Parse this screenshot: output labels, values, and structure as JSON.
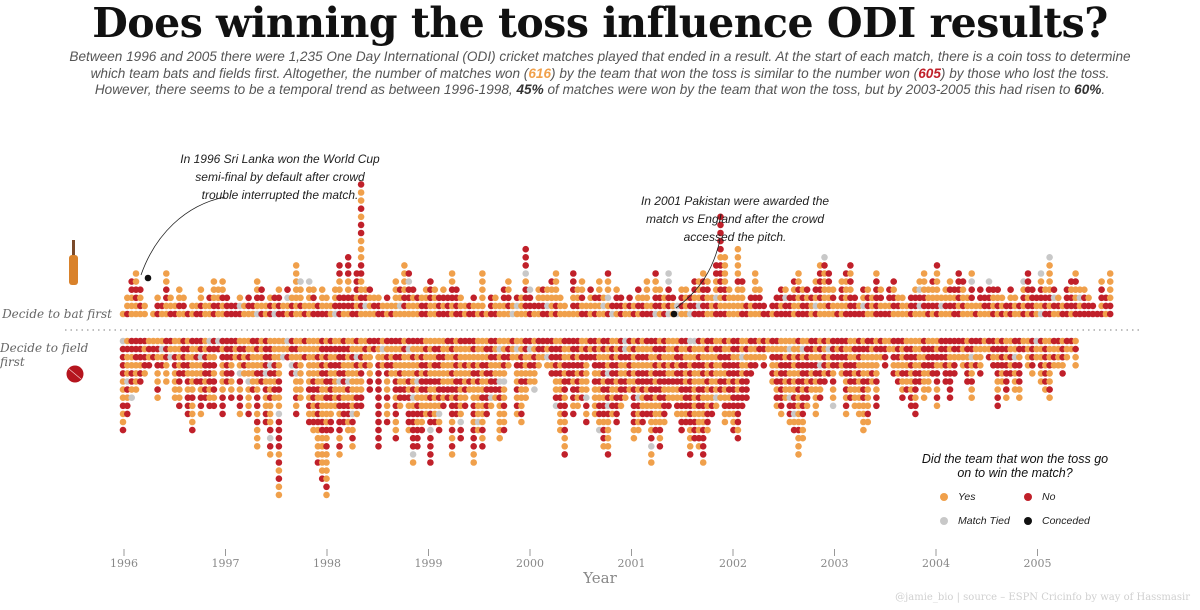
{
  "title": "Does winning the toss influence ODI results?",
  "subtitle": {
    "line1": "Between 1996 and 2005 there were 1,235 One Day International (ODI) cricket matches played that ended in a result. At the start of each match, there is a coin toss to determine",
    "line2a": "which team bats and fields first. Altogether, the number of matches won (",
    "line2_yes": "616",
    "line2b": ") by the team that won the toss is similar to the number won (",
    "line2_no": "605",
    "line2c": ") by those who lost the toss.",
    "line3a": "However, there seems to be a temporal trend as between 1996-1998, ",
    "line3_pct1": "45%",
    "line3b": " of matches were won by the team that won the toss, but by 2003-2005 this had risen to ",
    "line3_pct2": "60%",
    "line3c": "."
  },
  "annotations": {
    "a1996": "In 1996 Sri Lanka won the World Cup semi-final by default after crowd trouble interrupted the match.",
    "a2001": "In 2001 Pakistan were awarded the match vs England after the crowd accessed the pitch."
  },
  "row_labels": {
    "bat": "Decide to bat first",
    "field": "Decide to field first"
  },
  "icons": {
    "bat": "cricket-bat-icon",
    "ball": "cricket-ball-icon"
  },
  "legend": {
    "title": "Did the team that won the toss go on to win the match?",
    "yes": "Yes",
    "no": "No",
    "tied": "Match Tied",
    "conceded": "Conceded"
  },
  "source": "@jamie_bio | source – ESPN Cricinfo by way of Hassmasir",
  "colors": {
    "yes": "#f0a04b",
    "no": "#c0202a",
    "tied": "#c8c8c8",
    "conceded": "#111111"
  },
  "chart_data": {
    "type": "scatter",
    "xlabel": "Year",
    "xticks": [
      "1996",
      "1997",
      "1998",
      "1999",
      "2000",
      "2001",
      "2002",
      "2003",
      "2004",
      "2005"
    ],
    "xlim": [
      1996,
      2006
    ],
    "unit": "one dot = one ODI match",
    "totals": {
      "matches": 1235,
      "toss_winner_won": 616,
      "toss_loser_won": 605
    },
    "period_share": {
      "1996-1998": "45%",
      "2003-2005": "60%"
    },
    "series": [
      {
        "name": "Decide to bat first",
        "direction": "up",
        "counts": [
          1,
          3,
          5,
          6,
          4,
          2,
          0,
          1,
          3,
          2,
          6,
          3,
          2,
          4,
          3,
          1,
          2,
          2,
          4,
          2,
          3,
          5,
          4,
          5,
          3,
          2,
          2,
          3,
          2,
          3,
          2,
          5,
          4,
          2,
          3,
          3,
          4,
          2,
          4,
          3,
          7,
          5,
          2,
          5,
          4,
          2,
          4,
          3,
          2,
          4,
          7,
          3,
          8,
          3,
          6,
          17,
          4,
          4,
          3,
          3,
          2,
          3,
          2,
          5,
          4,
          7,
          6,
          4,
          3,
          3,
          4,
          5,
          4,
          3,
          4,
          3,
          6,
          4,
          3,
          2,
          2,
          3,
          2,
          6,
          1,
          3,
          3,
          2,
          4,
          5,
          2,
          3,
          3,
          9,
          4,
          2,
          4,
          4,
          4,
          5,
          6,
          3,
          2,
          1,
          6,
          4,
          5,
          2,
          4,
          3,
          5,
          3,
          6,
          2,
          4,
          3,
          2,
          3,
          2,
          4,
          3,
          5,
          2,
          6,
          4,
          3,
          6,
          3,
          2,
          4,
          4,
          3,
          5,
          5,
          6,
          5,
          3,
          7,
          13,
          8,
          4,
          3,
          9,
          5,
          2,
          3,
          6,
          4,
          2,
          1,
          2,
          3,
          4,
          4,
          3,
          5,
          6,
          4,
          4,
          3,
          5,
          7,
          8,
          6,
          4,
          2,
          5,
          6,
          7,
          3,
          2,
          4,
          4,
          3,
          6,
          4,
          2,
          4,
          5,
          3,
          3,
          2,
          3,
          4,
          5,
          6,
          4,
          5,
          7,
          3,
          4,
          5,
          4,
          6,
          5,
          3,
          6,
          2,
          4,
          3,
          5,
          4,
          4,
          3,
          2,
          4,
          3,
          2,
          5,
          6,
          4,
          3,
          6,
          4,
          8,
          4,
          3,
          2,
          4,
          5,
          6,
          4,
          4,
          3,
          2,
          1,
          5,
          3,
          6
        ]
      },
      {
        "name": "Decide to field first",
        "direction": "down",
        "counts": [
          12,
          10,
          8,
          7,
          6,
          5,
          4,
          3,
          8,
          4,
          6,
          3,
          8,
          9,
          5,
          10,
          12,
          6,
          10,
          8,
          9,
          9,
          2,
          10,
          6,
          8,
          3,
          10,
          5,
          10,
          7,
          14,
          6,
          11,
          15,
          8,
          20,
          3,
          3,
          5,
          10,
          8,
          3,
          11,
          12,
          16,
          18,
          20,
          12,
          9,
          15,
          11,
          12,
          14,
          10,
          9,
          4,
          7,
          2,
          14,
          4,
          11,
          5,
          13,
          9,
          8,
          12,
          16,
          14,
          12,
          10,
          16,
          11,
          12,
          9,
          8,
          15,
          10,
          13,
          9,
          7,
          16,
          12,
          14,
          10,
          9,
          8,
          13,
          12,
          4,
          3,
          10,
          11,
          8,
          6,
          7,
          4,
          3,
          4,
          5,
          9,
          12,
          15,
          6,
          10,
          9,
          8,
          11,
          3,
          10,
          12,
          14,
          15,
          10,
          11,
          9,
          8,
          7,
          13,
          12,
          11,
          10,
          16,
          12,
          14,
          11,
          9,
          8,
          10,
          12,
          11,
          15,
          13,
          14,
          16,
          12,
          10,
          9,
          8,
          11,
          10,
          12,
          13,
          9,
          8,
          5,
          4,
          3,
          4,
          2,
          6,
          9,
          10,
          8,
          11,
          12,
          15,
          13,
          9,
          7,
          10,
          8,
          6,
          5,
          9,
          4,
          5,
          10,
          8,
          9,
          10,
          12,
          11,
          6,
          9,
          3,
          4,
          2,
          5,
          6,
          8,
          7,
          9,
          10,
          6,
          8,
          7,
          5,
          9,
          4,
          6,
          8,
          5,
          3,
          4,
          6,
          8,
          4,
          5,
          2,
          3,
          4,
          9,
          6,
          8,
          5,
          7,
          8,
          2,
          4,
          5,
          3,
          6,
          7,
          8,
          4,
          4,
          5,
          3,
          2,
          4
        ]
      }
    ],
    "special": [
      {
        "name": "1996 World Cup semi-final default",
        "x": "1996-03",
        "row": "bat",
        "result": "conceded"
      },
      {
        "name": "2001 Pakistan awarded match vs England",
        "x": "2001-06",
        "row": "bat",
        "result": "conceded"
      }
    ]
  }
}
